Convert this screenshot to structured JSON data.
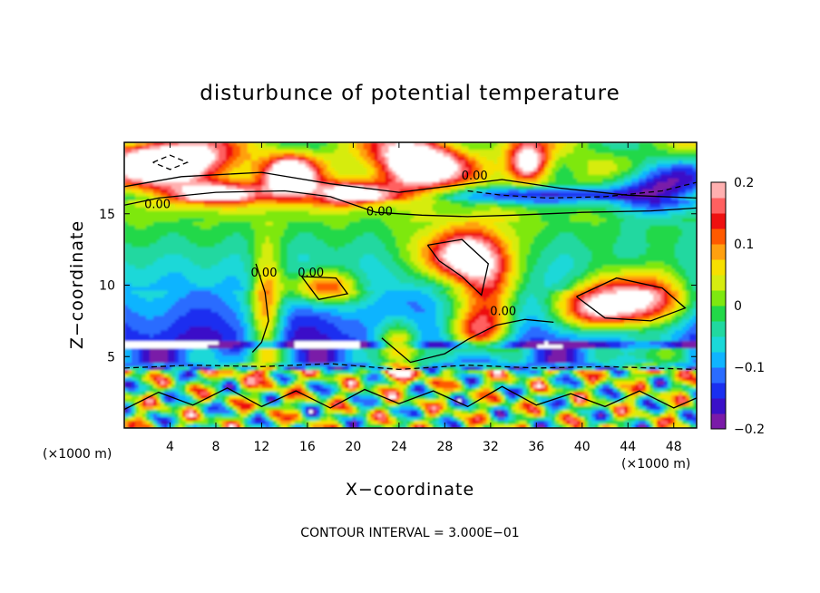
{
  "chart_data": {
    "type": "heatmap",
    "title": "disturbunce of potential temperature",
    "xlabel": "X−coordinate",
    "ylabel": "Z−coordinate",
    "x_unit_left": "(×1000 m)",
    "x_unit_right": "(×1000 m)",
    "footer": "CONTOUR INTERVAL = 3.000E−01",
    "xlim": [
      0,
      50
    ],
    "ylim": [
      0,
      20
    ],
    "x_ticks": [
      4,
      8,
      12,
      16,
      20,
      24,
      28,
      32,
      36,
      40,
      44,
      48
    ],
    "x_tick_labels": [
      "4",
      "8",
      "12",
      "16",
      "20",
      "24",
      "28",
      "32",
      "36",
      "40",
      "44",
      "48"
    ],
    "y_ticks": [
      5,
      10,
      15
    ],
    "y_tick_labels": [
      "5",
      "10",
      "15"
    ],
    "colorbar": {
      "min": -0.2,
      "max": 0.2,
      "ticks": [
        0.2,
        0.1,
        0,
        -0.1,
        -0.2
      ],
      "tick_labels": [
        "0.2",
        "0.1",
        "0",
        "−0.1",
        "−0.2"
      ],
      "colors": [
        "#7a1aa8",
        "#3a10c8",
        "#1a2ff0",
        "#2a6cff",
        "#10b4ff",
        "#1ad8d8",
        "#20d8a0",
        "#22d848",
        "#7ee810",
        "#d6ec10",
        "#f7e000",
        "#ffa010",
        "#ff5a00",
        "#ee1010",
        "#ff6060",
        "#ffb0b0"
      ]
    },
    "contour_labels": [
      {
        "text": "0.00",
        "x": 2.9,
        "z": 15.4
      },
      {
        "text": "0.00",
        "x": 22.3,
        "z": 14.9
      },
      {
        "text": "0.00",
        "x": 30.6,
        "z": 17.4
      },
      {
        "text": "0.00",
        "x": 16.3,
        "z": 10.6
      },
      {
        "text": "0.00",
        "x": 12.2,
        "z": 10.6
      },
      {
        "text": "0.00",
        "x": 33.1,
        "z": 7.9
      }
    ],
    "grid": false,
    "contour_interval": 0.3
  }
}
